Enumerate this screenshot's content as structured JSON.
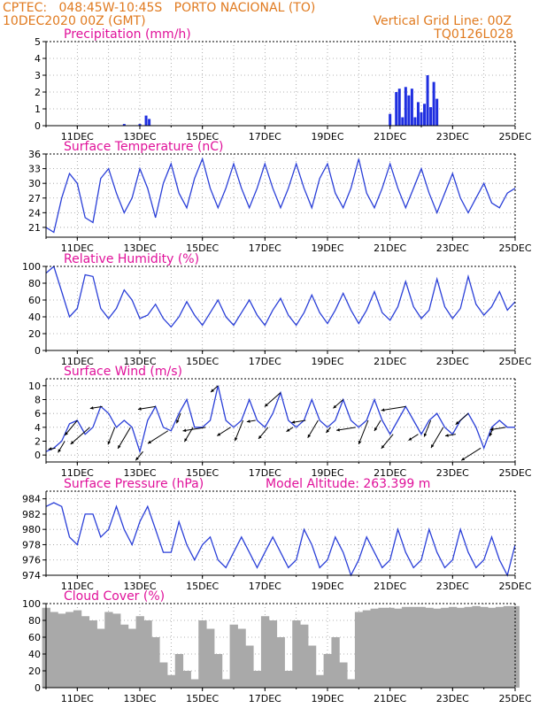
{
  "header": {
    "line1": "CPTEC:   048:45W-10:45S   PORTO NACIONAL (TO)",
    "line2": "10DEC2020 00Z (GMT)",
    "right1": "Vertical Grid Line: 00Z",
    "right2": "TQ0126L028"
  },
  "x_ticks": [
    "11DEC",
    "13DEC",
    "15DEC",
    "17DEC",
    "19DEC",
    "21DEC",
    "23DEC",
    "25DEC"
  ],
  "colors": {
    "header": "#e07a1f",
    "titles": "#e0119a",
    "line": "#2a3fd8",
    "bar": "#1f2fe0",
    "cloud": "#a9a9a9",
    "arrow": "#000000"
  },
  "chart_data": [
    {
      "type": "bar",
      "title": "Precipitation (mm/h)",
      "ylim": [
        0,
        5
      ],
      "yticks": [
        0,
        1,
        2,
        3,
        4,
        5
      ],
      "x": [
        2.5,
        3.0,
        3.2,
        3.3,
        11.0,
        11.2,
        11.3,
        11.4,
        11.5,
        11.6,
        11.7,
        11.8,
        11.9,
        12.0,
        12.1,
        12.2,
        12.3,
        12.4,
        12.5
      ],
      "values": [
        0.1,
        0.1,
        0.6,
        0.4,
        0.7,
        2.0,
        2.2,
        0.5,
        2.3,
        1.8,
        2.2,
        0.5,
        1.4,
        0.8,
        1.3,
        3.0,
        1.1,
        2.6,
        1.6
      ]
    },
    {
      "type": "line",
      "title": "Surface Temperature (nC)",
      "ylim": [
        19,
        36
      ],
      "yticks": [
        21,
        24,
        27,
        30,
        33,
        36
      ],
      "series": [
        {
          "name": "",
          "x": [
            0.0,
            0.25,
            0.5,
            0.75,
            1.0,
            1.25,
            1.5,
            1.75,
            2.0,
            2.25,
            2.5,
            2.75,
            3.0,
            3.25,
            3.5,
            3.75,
            4.0,
            4.25,
            4.5,
            4.75,
            5.0,
            5.25,
            5.5,
            5.75,
            6.0,
            6.25,
            6.5,
            6.75,
            7.0,
            7.25,
            7.5,
            7.75,
            8.0,
            8.25,
            8.5,
            8.75,
            9.0,
            9.25,
            9.5,
            9.75,
            10.0,
            10.25,
            10.5,
            10.75,
            11.0,
            11.25,
            11.5,
            11.75,
            12.0,
            12.25,
            12.5,
            12.75,
            13.0,
            13.25,
            13.5,
            13.75,
            14.0,
            14.25,
            14.5,
            14.75,
            15.0
          ],
          "values": [
            21,
            20,
            27,
            32,
            30,
            23,
            22,
            31,
            33,
            28,
            24,
            27,
            33,
            29,
            23,
            30,
            34,
            28,
            25,
            31,
            35,
            29,
            25,
            29,
            34,
            29,
            25,
            29,
            34,
            29,
            25,
            29,
            34,
            29,
            25,
            31,
            34,
            28,
            25,
            29,
            35,
            28,
            25,
            29,
            34,
            29,
            25,
            29,
            33,
            28,
            24,
            28,
            32,
            27,
            24,
            27,
            30,
            26,
            25,
            28,
            29
          ]
        }
      ]
    },
    {
      "type": "line",
      "title": "Relative Humidity (%)",
      "ylim": [
        0,
        100
      ],
      "yticks": [
        0,
        20,
        40,
        60,
        80,
        100
      ],
      "series": [
        {
          "name": "",
          "x": [
            0.0,
            0.25,
            0.5,
            0.75,
            1.0,
            1.25,
            1.5,
            1.75,
            2.0,
            2.25,
            2.5,
            2.75,
            3.0,
            3.25,
            3.5,
            3.75,
            4.0,
            4.25,
            4.5,
            4.75,
            5.0,
            5.25,
            5.5,
            5.75,
            6.0,
            6.25,
            6.5,
            6.75,
            7.0,
            7.25,
            7.5,
            7.75,
            8.0,
            8.25,
            8.5,
            8.75,
            9.0,
            9.25,
            9.5,
            9.75,
            10.0,
            10.25,
            10.5,
            10.75,
            11.0,
            11.25,
            11.5,
            11.75,
            12.0,
            12.25,
            12.5,
            12.75,
            13.0,
            13.25,
            13.5,
            13.75,
            14.0,
            14.25,
            14.5,
            14.75,
            15.0
          ],
          "values": [
            92,
            100,
            70,
            40,
            50,
            90,
            88,
            50,
            38,
            50,
            72,
            60,
            38,
            42,
            55,
            38,
            28,
            40,
            58,
            42,
            30,
            45,
            60,
            40,
            30,
            45,
            60,
            42,
            30,
            48,
            62,
            42,
            30,
            45,
            66,
            45,
            32,
            48,
            68,
            48,
            32,
            48,
            70,
            45,
            36,
            52,
            82,
            52,
            38,
            48,
            85,
            52,
            38,
            50,
            88,
            55,
            42,
            52,
            70,
            48,
            58
          ]
        }
      ]
    },
    {
      "type": "line",
      "title": "Surface Wind (m/s)",
      "ylim": [
        -1,
        11
      ],
      "yticks": [
        0,
        2,
        4,
        6,
        8,
        10
      ],
      "series": [
        {
          "name": "",
          "x": [
            0.0,
            0.25,
            0.5,
            0.75,
            1.0,
            1.25,
            1.5,
            1.75,
            2.0,
            2.25,
            2.5,
            2.75,
            3.0,
            3.25,
            3.5,
            3.75,
            4.0,
            4.25,
            4.5,
            4.75,
            5.0,
            5.25,
            5.5,
            5.75,
            6.0,
            6.25,
            6.5,
            6.75,
            7.0,
            7.25,
            7.5,
            7.75,
            8.0,
            8.25,
            8.5,
            8.75,
            9.0,
            9.25,
            9.5,
            9.75,
            10.0,
            10.25,
            10.5,
            10.75,
            11.0,
            11.25,
            11.5,
            11.75,
            12.0,
            12.25,
            12.5,
            12.75,
            13.0,
            13.25,
            13.5,
            13.75,
            14.0,
            14.25,
            14.5,
            14.75,
            15.0
          ],
          "values": [
            0.5,
            1,
            2,
            4.5,
            5,
            3,
            4,
            7,
            6,
            4,
            5,
            4,
            0.5,
            5,
            7,
            4,
            3.5,
            6,
            8,
            4,
            4,
            5,
            10,
            5,
            4,
            5,
            8,
            5,
            4,
            6,
            9,
            5,
            4,
            5,
            8,
            5,
            4,
            5,
            8,
            5,
            4,
            5,
            8,
            5,
            3,
            5,
            7,
            5,
            3,
            5,
            6,
            4,
            3,
            5,
            6,
            4,
            1,
            4,
            5,
            4,
            4
          ]
        }
      ],
      "vectors_x": [
        0.3,
        0.6,
        1.0,
        1.4,
        1.8,
        2.2,
        2.7,
        3.1,
        3.5,
        3.9,
        4.3,
        4.7,
        5.1,
        5.5,
        5.9,
        6.3,
        6.7,
        7.1,
        7.5,
        7.9,
        8.3,
        8.7,
        9.1,
        9.5,
        9.9,
        10.3,
        10.7,
        11.1,
        11.5,
        11.9,
        12.3,
        12.7,
        13.1,
        13.5,
        13.9,
        14.3,
        14.7
      ]
    },
    {
      "type": "line",
      "title": "Surface Pressure (hPa)",
      "subtitle": "Model Altitude: 263.399 m",
      "ylim": [
        974,
        985
      ],
      "yticks": [
        974,
        976,
        978,
        980,
        982,
        984
      ],
      "series": [
        {
          "name": "",
          "x": [
            0.0,
            0.25,
            0.5,
            0.75,
            1.0,
            1.25,
            1.5,
            1.75,
            2.0,
            2.25,
            2.5,
            2.75,
            3.0,
            3.25,
            3.5,
            3.75,
            4.0,
            4.25,
            4.5,
            4.75,
            5.0,
            5.25,
            5.5,
            5.75,
            6.0,
            6.25,
            6.5,
            6.75,
            7.0,
            7.25,
            7.5,
            7.75,
            8.0,
            8.25,
            8.5,
            8.75,
            9.0,
            9.25,
            9.5,
            9.75,
            10.0,
            10.25,
            10.5,
            10.75,
            11.0,
            11.25,
            11.5,
            11.75,
            12.0,
            12.25,
            12.5,
            12.75,
            13.0,
            13.25,
            13.5,
            13.75,
            14.0,
            14.25,
            14.5,
            14.75,
            15.0
          ],
          "values": [
            983,
            983.5,
            983,
            979,
            978,
            982,
            982,
            979,
            980,
            983,
            980,
            978,
            981,
            983,
            980,
            977,
            977,
            981,
            978,
            976,
            978,
            979,
            976,
            975,
            977,
            979,
            977,
            975,
            977,
            979,
            977,
            975,
            976,
            980,
            978,
            975,
            976,
            979,
            977,
            974,
            976,
            979,
            977,
            975,
            976,
            980,
            977,
            975,
            976,
            980,
            977,
            975,
            976,
            980,
            977,
            975,
            976,
            979,
            976,
            974,
            978
          ]
        }
      ]
    },
    {
      "type": "area",
      "title": "Cloud Cover (%)",
      "ylim": [
        0,
        100
      ],
      "yticks": [
        0,
        20,
        40,
        60,
        80,
        100
      ],
      "series": [
        {
          "name": "",
          "x": [
            0.0,
            0.25,
            0.5,
            0.75,
            1.0,
            1.25,
            1.5,
            1.75,
            2.0,
            2.25,
            2.5,
            2.75,
            3.0,
            3.25,
            3.5,
            3.75,
            4.0,
            4.25,
            4.5,
            4.75,
            5.0,
            5.25,
            5.5,
            5.75,
            6.0,
            6.25,
            6.5,
            6.75,
            7.0,
            7.25,
            7.5,
            7.75,
            8.0,
            8.25,
            8.5,
            8.75,
            9.0,
            9.25,
            9.5,
            9.75,
            10.0,
            10.25,
            10.5,
            10.75,
            11.0,
            11.25,
            11.5,
            11.75,
            12.0,
            12.25,
            12.5,
            12.75,
            13.0,
            13.25,
            13.5,
            13.75,
            14.0,
            14.25,
            14.5,
            14.75,
            15.0
          ],
          "values": [
            95,
            90,
            88,
            90,
            92,
            85,
            80,
            70,
            90,
            88,
            75,
            70,
            85,
            80,
            60,
            30,
            15,
            40,
            20,
            10,
            80,
            70,
            40,
            10,
            75,
            70,
            50,
            20,
            85,
            80,
            60,
            20,
            80,
            75,
            50,
            15,
            40,
            60,
            30,
            10,
            90,
            92,
            94,
            95,
            95,
            94,
            96,
            96,
            96,
            95,
            94,
            95,
            96,
            95,
            96,
            97,
            96,
            95,
            96,
            97,
            97
          ]
        }
      ]
    }
  ]
}
